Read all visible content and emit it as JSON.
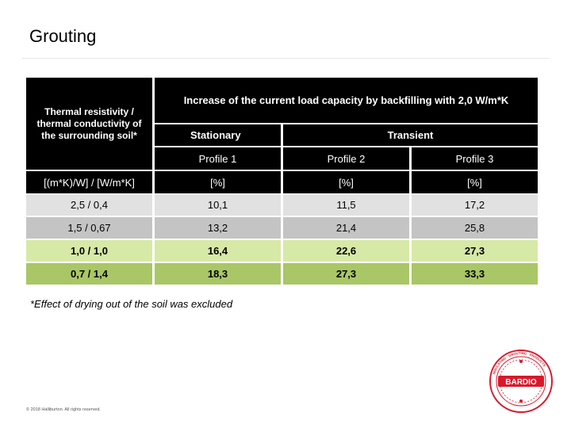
{
  "title": "Grouting",
  "table": {
    "row_header_label": "Thermal resistivity / thermal conductivity of the surrounding soil*",
    "main_header": "Increase of the current load capacity by backfilling with 2,0 W/m*K",
    "group_stationary": "Stationary",
    "group_transient": "Transient",
    "profiles": [
      "Profile 1",
      "Profile 2",
      "Profile 3"
    ],
    "units_row": [
      "[(m*K)/W] / [W/m*K]",
      "[%]",
      "[%]",
      "[%]"
    ],
    "rows": [
      [
        "2,5 / 0,4",
        "10,1",
        "11,5",
        "17,2"
      ],
      [
        "1,5 / 0,67",
        "13,2",
        "21,4",
        "25,8"
      ],
      [
        "1,0 / 1,0",
        "16,4",
        "22,6",
        "27,3"
      ],
      [
        "0,7 / 1,4",
        "18,3",
        "27,3",
        "33,3"
      ]
    ]
  },
  "footnote": "*Effect of drying out of the soil was excluded",
  "copyright": "© 2018 Halliburton. All rights reserved.",
  "logo": {
    "text": "BARDIO",
    "ring_text": "INSULATING · GROUTING · PRODUCTS",
    "color": "#d8192b"
  }
}
